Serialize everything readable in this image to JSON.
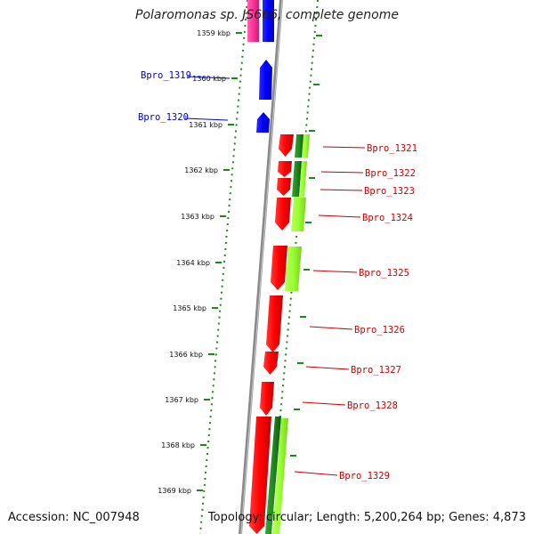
{
  "title": "Polaromonas sp. JS666, complete genome",
  "footer": {
    "accession": "Accession: NC_007948",
    "summary": "Topology: circular; Length: 5,200,264 bp; Genes: 4,873"
  },
  "colors": {
    "forward_strand": "#ff0000",
    "reverse_strand_blue": "#0000ff",
    "reverse_strand_magenta": "#ff3399",
    "green_light": "#99ff33",
    "green_dark": "#228822",
    "ruler_dots": "#1a8a1a",
    "backbone": "#888888",
    "left_label": "#0000cc",
    "right_label": "#cc0000"
  },
  "kbp_ticks": [
    {
      "kbp": 1359,
      "label": "1359 kbp"
    },
    {
      "kbp": 1360,
      "label": "1360 kbp"
    },
    {
      "kbp": 1361,
      "label": "1361 kbp"
    },
    {
      "kbp": 1362,
      "label": "1362 kbp"
    },
    {
      "kbp": 1363,
      "label": "1363 kbp"
    },
    {
      "kbp": 1364,
      "label": "1364 kbp"
    },
    {
      "kbp": 1365,
      "label": "1365 kbp"
    },
    {
      "kbp": 1366,
      "label": "1366 kbp"
    },
    {
      "kbp": 1367,
      "label": "1367 kbp"
    },
    {
      "kbp": 1368,
      "label": "1368 kbp"
    },
    {
      "kbp": 1369,
      "label": "1369 kbp"
    }
  ],
  "left_genes": [
    {
      "name": "Bpro_1319"
    },
    {
      "name": "Bpro_1320"
    }
  ],
  "right_genes": [
    {
      "name": "Bpro_1321"
    },
    {
      "name": "Bpro_1322"
    },
    {
      "name": "Bpro_1323"
    },
    {
      "name": "Bpro_1324"
    },
    {
      "name": "Bpro_1325"
    },
    {
      "name": "Bpro_1326"
    },
    {
      "name": "Bpro_1327"
    },
    {
      "name": "Bpro_1328"
    },
    {
      "name": "Bpro_1329"
    }
  ]
}
